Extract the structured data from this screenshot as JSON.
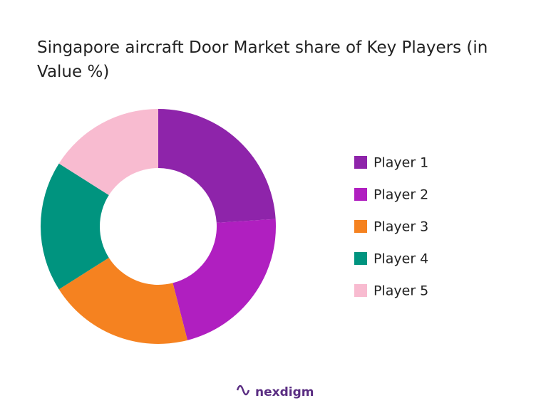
{
  "chart_data": {
    "type": "donut",
    "title": "Singapore aircraft Door Market share of Key Players (in Value %)",
    "categories": [
      "Player 1",
      "Player 2",
      "Player 3",
      "Player 4",
      "Player 5"
    ],
    "values": [
      24,
      22,
      20,
      18,
      16
    ],
    "colors": [
      "#8e24aa",
      "#b01fc0",
      "#f58220",
      "#00947f",
      "#f8bbd0"
    ],
    "legend": "right"
  },
  "logo": "nexdigm"
}
